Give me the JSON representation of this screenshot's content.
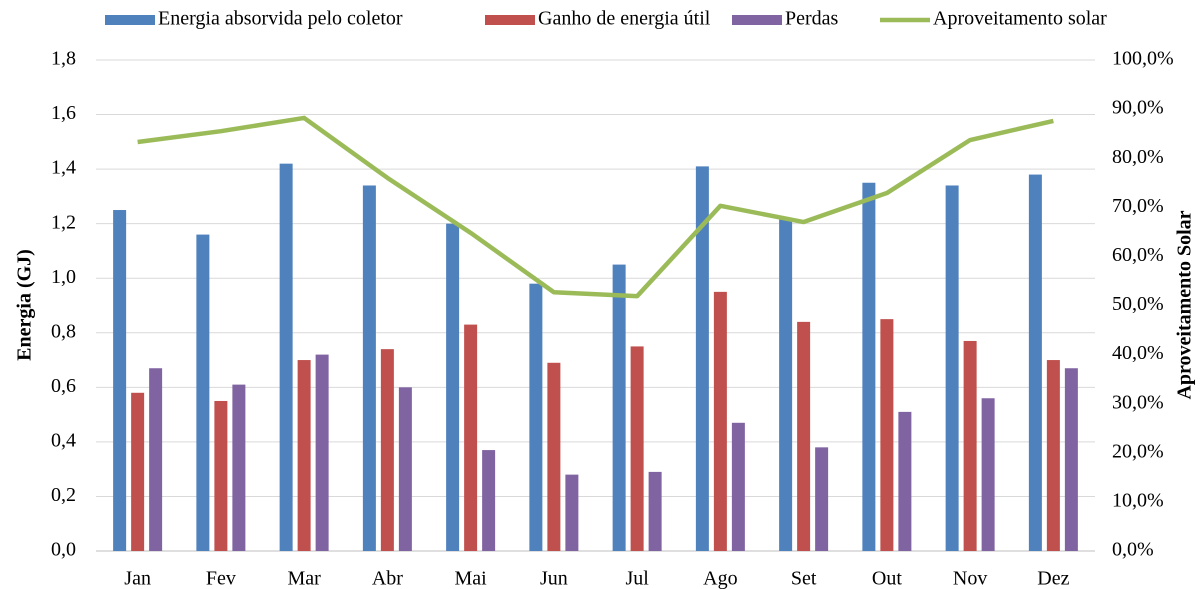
{
  "chart_data": {
    "type": "bar_line",
    "categories": [
      "Jan",
      "Fev",
      "Mar",
      "Abr",
      "Mai",
      "Jun",
      "Jul",
      "Ago",
      "Set",
      "Out",
      "Nov",
      "Dez"
    ],
    "series": [
      {
        "name": "Energia absorvida pelo coletor",
        "color": "#4f81bd",
        "type": "bar",
        "values": [
          1.25,
          1.16,
          1.42,
          1.34,
          1.2,
          0.98,
          1.05,
          1.41,
          1.22,
          1.35,
          1.34,
          1.38
        ]
      },
      {
        "name": "Ganho de energia útil",
        "color": "#c0504d",
        "type": "bar",
        "values": [
          0.58,
          0.55,
          0.7,
          0.74,
          0.83,
          0.69,
          0.75,
          0.95,
          0.84,
          0.85,
          0.77,
          0.7
        ]
      },
      {
        "name": "Perdas",
        "color": "#8064a2",
        "type": "bar",
        "values": [
          0.67,
          0.61,
          0.72,
          0.6,
          0.37,
          0.28,
          0.29,
          0.47,
          0.38,
          0.51,
          0.56,
          0.67
        ]
      },
      {
        "name": "Aproveitamento solar",
        "color": "#9bbb59",
        "type": "line",
        "axis": "y2",
        "values": [
          83.3,
          85.5,
          88.2,
          76.0,
          64.8,
          52.7,
          51.9,
          70.3,
          67.0,
          72.9,
          83.7,
          87.6
        ]
      }
    ],
    "ylabel": "Energia (GJ)",
    "y2label": "Aproveitamento Solar",
    "ylim": [
      0,
      1.8
    ],
    "yticks": [
      {
        "value": 0,
        "label": "0,0"
      },
      {
        "value": 0.2,
        "label": "0,2"
      },
      {
        "value": 0.4,
        "label": "0,4"
      },
      {
        "value": 0.6,
        "label": "0,6"
      },
      {
        "value": 0.8,
        "label": "0,8"
      },
      {
        "value": 1.0,
        "label": "1,0"
      },
      {
        "value": 1.2,
        "label": "1,2"
      },
      {
        "value": 1.4,
        "label": "1,4"
      },
      {
        "value": 1.6,
        "label": "1,6"
      },
      {
        "value": 1.8,
        "label": "1,8"
      }
    ],
    "y2lim": [
      0,
      100
    ],
    "y2ticks": [
      {
        "value": 0,
        "label": "0,0%"
      },
      {
        "value": 10,
        "label": "10,0%"
      },
      {
        "value": 20,
        "label": "20,0%"
      },
      {
        "value": 30,
        "label": "30,0%"
      },
      {
        "value": 40,
        "label": "40,0%"
      },
      {
        "value": 50,
        "label": "50,0%"
      },
      {
        "value": 60,
        "label": "60,0%"
      },
      {
        "value": 70,
        "label": "70,0%"
      },
      {
        "value": 80,
        "label": "80,0%"
      },
      {
        "value": 90,
        "label": "90,0%"
      },
      {
        "value": 100,
        "label": "100,0%"
      }
    ],
    "grid": true,
    "legend": "top"
  }
}
